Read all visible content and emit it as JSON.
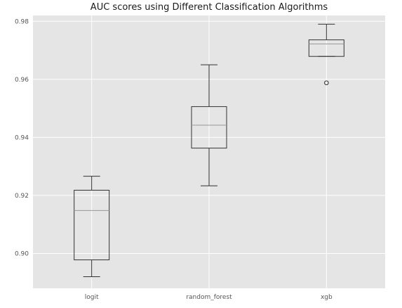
{
  "chart_data": {
    "type": "box",
    "title": "AUC scores using Different Classification Algorithms",
    "xlabel": "",
    "ylabel": "",
    "ylim": [
      0.888,
      0.982
    ],
    "yticks": [
      0.9,
      0.92,
      0.94,
      0.96,
      0.98
    ],
    "ytick_labels": [
      "0.90",
      "0.92",
      "0.94",
      "0.96",
      "0.98"
    ],
    "grid": true,
    "categories": [
      "logit",
      "random_forest",
      "xgb"
    ],
    "boxes": [
      {
        "name": "logit",
        "whisker_low": 0.892,
        "q1": 0.8978,
        "median": 0.9148,
        "q3": 0.9218,
        "whisker_high": 0.9266,
        "outliers": []
      },
      {
        "name": "random_forest",
        "whisker_low": 0.9233,
        "q1": 0.9363,
        "median": 0.9442,
        "q3": 0.9506,
        "whisker_high": 0.965,
        "outliers": []
      },
      {
        "name": "xgb",
        "whisker_low": 0.9679,
        "q1": 0.9679,
        "median": 0.9722,
        "q3": 0.9736,
        "whisker_high": 0.979,
        "outliers": [
          0.9588
        ]
      }
    ],
    "colors": {
      "background": "#e5e5e5",
      "grid": "#ffffff",
      "box": "#333333",
      "median": "#999999"
    }
  }
}
